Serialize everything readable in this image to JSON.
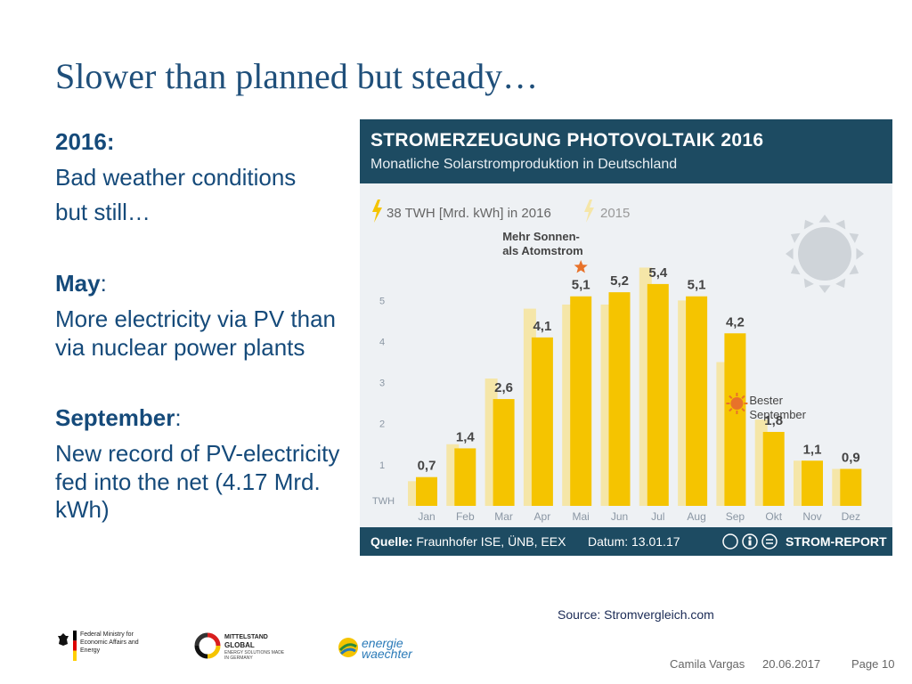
{
  "slide": {
    "title": "Slower than planned but steady…",
    "left_text": {
      "year_heading": "2016:",
      "line1": "Bad weather conditions",
      "line2": "but still…",
      "may_heading": "May",
      "may_colon": ":",
      "may_text": "More electricity via PV than via nuclear power plants",
      "sep_heading": "September",
      "sep_colon": ":",
      "sep_text": "New record of PV-electricity fed into the net (4.17 Mrd. kWh)"
    },
    "source_caption": "Source: Stromvergleich.com",
    "logos": {
      "bmwi": "Federal Ministry for Economic Affairs and Energy",
      "mittelstand_1": "MITTELSTAND",
      "mittelstand_2": "GLOBAL",
      "mittelstand_3": "ENERGY SOLUTIONS MADE IN GERMANY",
      "energie_1": "energie",
      "energie_2": "waechter"
    },
    "footer": {
      "author": "Camila Vargas",
      "date": "20.06.2017",
      "page": "Page 10"
    }
  },
  "chart_header": {
    "title": "STROMERZEUGUNG PHOTOVOLTAIK 2016",
    "subtitle": "Monatliche Solarstromproduktion in Deutschland"
  },
  "chart_footer": {
    "source_label": "Quelle:",
    "source_value": "Fraunhofer ISE, ÜNB, EEX",
    "date": "Datum: 13.01.17",
    "brand": "STROM-REPORT"
  },
  "chart_data": {
    "type": "bar",
    "categories": [
      "Jan",
      "Feb",
      "Mar",
      "Apr",
      "Mai",
      "Jun",
      "Jul",
      "Aug",
      "Sep",
      "Okt",
      "Nov",
      "Dez"
    ],
    "series": [
      {
        "name": "2015",
        "values": [
          0.6,
          1.5,
          3.1,
          4.8,
          4.9,
          4.9,
          5.8,
          5.0,
          3.5,
          2.1,
          1.1,
          0.9
        ]
      },
      {
        "name": "38 TWH [Mrd. kWh] in 2016",
        "values": [
          0.7,
          1.4,
          2.6,
          4.1,
          5.1,
          5.2,
          5.4,
          5.1,
          4.2,
          1.8,
          1.1,
          0.9
        ]
      }
    ],
    "data_labels": [
      "0,7",
      "1,4",
      "2,6",
      "4,1",
      "5,1",
      "5,2",
      "5,4",
      "5,1",
      "4,2",
      "1,8",
      "1,1",
      "0,9"
    ],
    "ylabel": "TWH",
    "yticks": [
      1,
      2,
      3,
      4,
      5
    ],
    "ylim": [
      0,
      6.2
    ],
    "annotations": [
      {
        "text1": "Mehr Sonnen-",
        "text2": "als Atomstrom",
        "category": "Mai"
      },
      {
        "text1": "Bester",
        "text2": "September",
        "category": "Sep"
      }
    ],
    "colors": {
      "series_2015": "#f5e6a8",
      "series_2016": "#f5c400",
      "label": "#444444",
      "bg": "#eef1f4",
      "header": "#1d4b62",
      "star": "#e8722a"
    }
  }
}
